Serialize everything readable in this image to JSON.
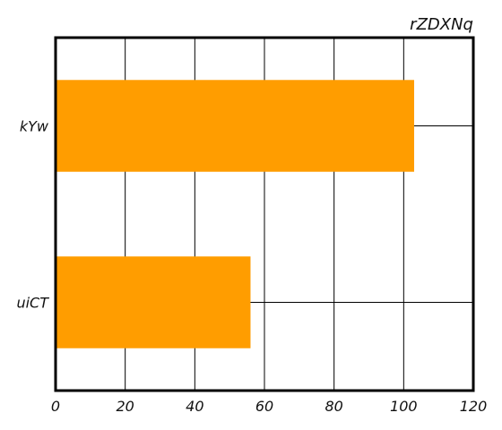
{
  "chart_data": {
    "type": "bar",
    "orientation": "horizontal",
    "title": "rZDXNq",
    "title_align": "right",
    "categories": [
      "kYw",
      "uiCT"
    ],
    "values": [
      103,
      56
    ],
    "xlim": [
      0,
      120
    ],
    "xticks": [
      0,
      20,
      40,
      60,
      80,
      100,
      120
    ],
    "xlabel": "",
    "ylabel": "",
    "grid": true,
    "bar_color": "#ff9d00",
    "grid_color": "#000000",
    "frame_color": "#000000"
  }
}
